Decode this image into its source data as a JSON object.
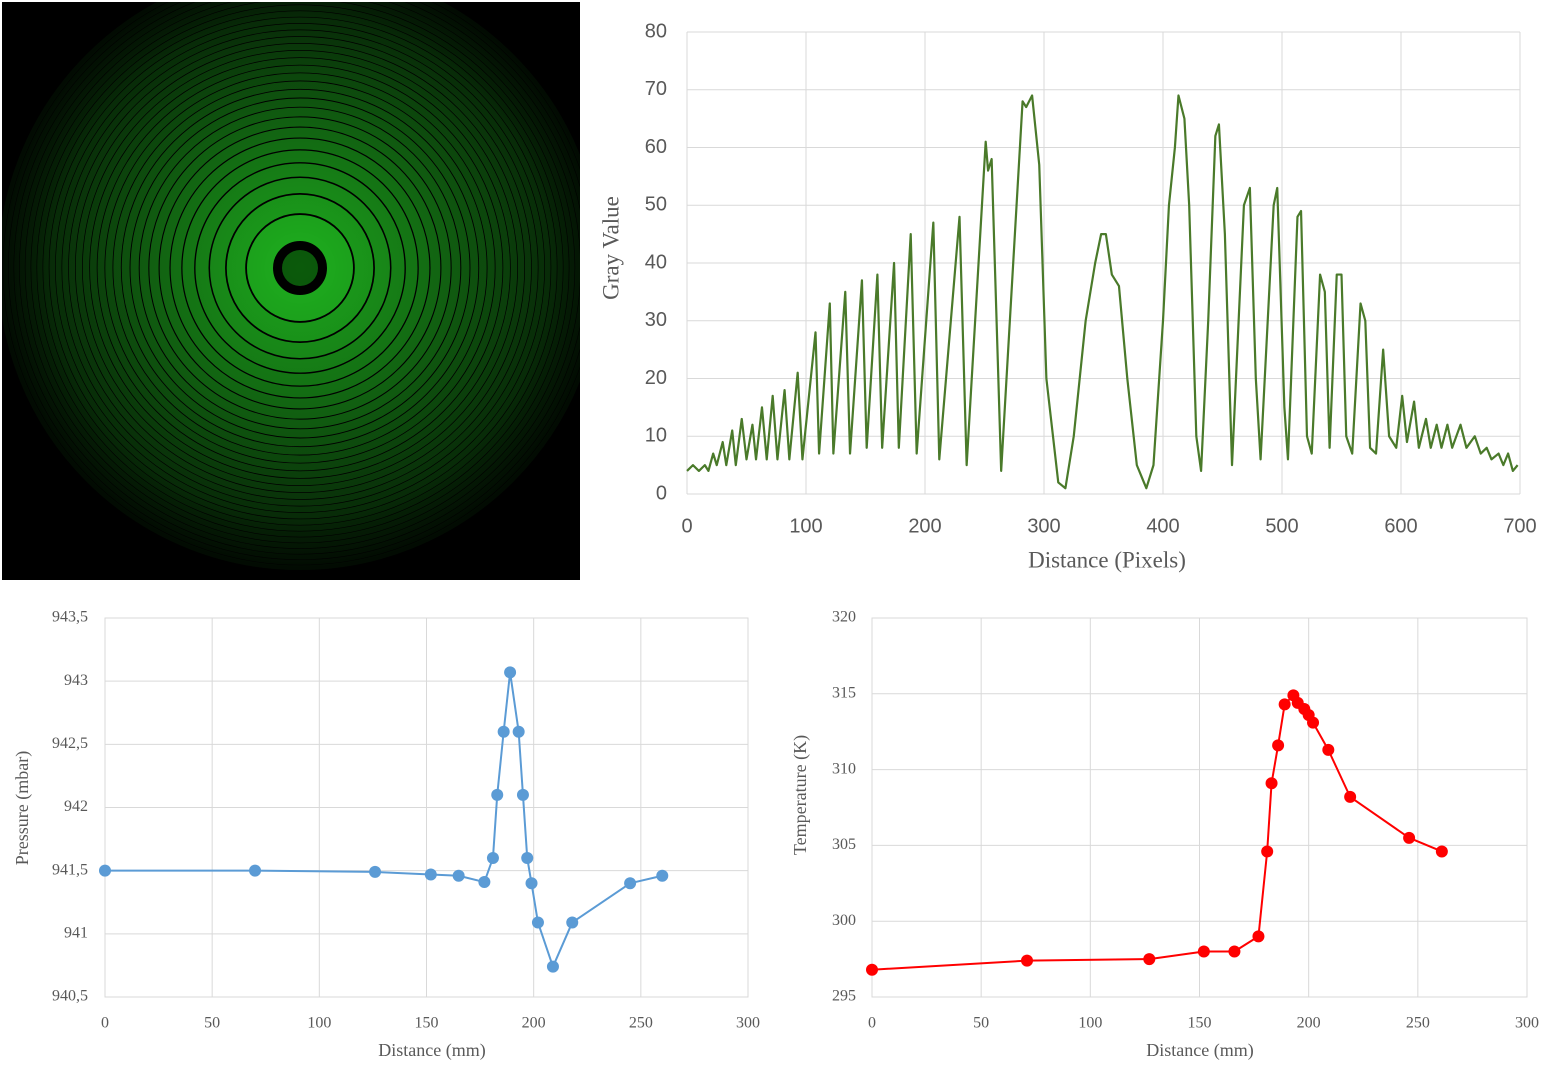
{
  "chart_data": [
    {
      "type": "line",
      "xlabel": "Distance (Pixels)",
      "ylabel": "Gray Value",
      "color": "#4a7a2a",
      "markers": false,
      "grid": true,
      "border": false,
      "x": [
        0,
        5,
        10,
        15,
        18,
        22,
        25,
        30,
        33,
        38,
        41,
        46,
        50,
        55,
        58,
        63,
        67,
        72,
        76,
        82,
        86,
        93,
        97,
        108,
        111,
        120,
        123,
        133,
        137,
        147,
        151,
        160,
        164,
        174,
        178,
        188,
        193,
        207,
        212,
        229,
        235,
        251,
        253,
        256,
        264,
        282,
        285,
        290,
        296,
        302,
        312,
        318,
        325,
        335,
        343,
        348,
        352,
        357,
        363,
        370,
        378,
        386,
        392,
        400,
        405,
        410,
        413,
        418,
        422,
        428,
        432,
        438,
        444,
        447,
        452,
        458,
        468,
        473,
        478,
        482,
        493,
        496,
        502,
        505,
        513,
        516,
        521,
        525,
        532,
        536,
        540,
        546,
        550,
        554,
        559,
        566,
        570,
        574,
        579,
        585,
        590,
        596,
        601,
        605,
        611,
        615,
        621,
        625,
        630,
        634,
        639,
        643,
        650,
        655,
        662,
        667,
        672,
        676,
        682,
        686,
        690,
        694,
        698
      ],
      "values": [
        4,
        5,
        4,
        5,
        4,
        7,
        5,
        9,
        5,
        11,
        5,
        13,
        6,
        12,
        6,
        15,
        6,
        17,
        6,
        18,
        6,
        21,
        6,
        28,
        7,
        33,
        7,
        35,
        7,
        37,
        8,
        38,
        8,
        40,
        8,
        45,
        7,
        47,
        6,
        48,
        5,
        61,
        56,
        58,
        4,
        68,
        67,
        69,
        57,
        20,
        2,
        1,
        10,
        30,
        40,
        45,
        45,
        38,
        36,
        20,
        5,
        1,
        5,
        30,
        50,
        60,
        69,
        65,
        50,
        10,
        4,
        30,
        62,
        64,
        45,
        5,
        50,
        53,
        20,
        6,
        50,
        53,
        15,
        6,
        48,
        49,
        10,
        7,
        38,
        35,
        8,
        38,
        38,
        10,
        7,
        33,
        30,
        8,
        7,
        25,
        10,
        8,
        17,
        9,
        16,
        8,
        13,
        8,
        12,
        8,
        12,
        8,
        12,
        8,
        10,
        7,
        8,
        6,
        7,
        5,
        7,
        4,
        5
      ],
      "xlim": [
        0,
        700
      ],
      "ylim": [
        0,
        80
      ],
      "xticks": [
        0,
        100,
        200,
        300,
        400,
        500,
        600,
        700
      ],
      "yticks": [
        0,
        10,
        20,
        30,
        40,
        50,
        60,
        70,
        80
      ]
    },
    {
      "type": "line",
      "xlabel": "Distance (mm)",
      "ylabel": "Pressure (mbar)",
      "color": "#5b9bd5",
      "markers": true,
      "grid": true,
      "border": true,
      "x": [
        0,
        70,
        126,
        152,
        165,
        177,
        181,
        183,
        186,
        189,
        193,
        195,
        197,
        199,
        202,
        209,
        218,
        245,
        260
      ],
      "values": [
        941.5,
        941.5,
        941.49,
        941.47,
        941.46,
        941.41,
        941.6,
        942.1,
        942.6,
        943.07,
        942.6,
        942.1,
        941.6,
        941.4,
        941.09,
        940.74,
        941.09,
        941.4,
        941.46
      ],
      "xlim": [
        0,
        300
      ],
      "ylim": [
        940.5,
        943.5
      ],
      "xticks": [
        0,
        50,
        100,
        150,
        200,
        250,
        300
      ],
      "yticks": [
        {
          "value": 940.5,
          "label": "940,5"
        },
        941,
        {
          "value": 941.5,
          "label": "941,5"
        },
        942,
        {
          "value": 942.5,
          "label": "942,5"
        },
        943,
        {
          "value": 943.5,
          "label": "943,5"
        }
      ]
    },
    {
      "type": "line",
      "xlabel": "Distance (mm)",
      "ylabel": "Temperature (K)",
      "color": "#ff0000",
      "markers": true,
      "grid": true,
      "border": true,
      "x": [
        0,
        71,
        127,
        152,
        166,
        177,
        181,
        183,
        186,
        189,
        193,
        195,
        198,
        200,
        202,
        209,
        219,
        246,
        261
      ],
      "values": [
        296.8,
        297.4,
        297.5,
        298.0,
        298.0,
        299.0,
        304.6,
        309.1,
        311.6,
        314.3,
        314.9,
        314.4,
        314.0,
        313.6,
        313.1,
        311.3,
        308.2,
        305.5,
        304.6
      ],
      "xlim": [
        0,
        300
      ],
      "ylim": [
        295,
        320
      ],
      "xticks": [
        0,
        50,
        100,
        150,
        200,
        250,
        300
      ],
      "yticks": [
        295,
        300,
        305,
        310,
        315,
        320
      ]
    }
  ]
}
